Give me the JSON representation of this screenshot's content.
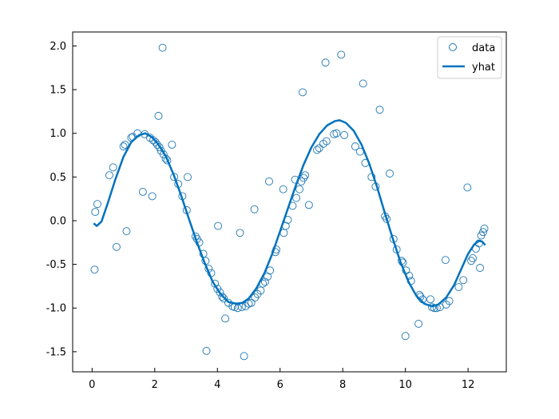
{
  "chart_data": {
    "type": "scatter",
    "xlim": [
      -0.62,
      13.22
    ],
    "ylim": [
      -1.73,
      2.16
    ],
    "x_ticks": [
      0,
      2,
      4,
      6,
      8,
      10,
      12
    ],
    "x_tick_labels": [
      "0",
      "2",
      "4",
      "6",
      "8",
      "10",
      "12"
    ],
    "y_ticks": [
      -1.5,
      -1.0,
      -0.5,
      0.0,
      0.5,
      1.0,
      1.5,
      2.0
    ],
    "y_tick_labels": [
      "-1.5",
      "-1.0",
      "-0.5",
      "0.0",
      "0.5",
      "1.0",
      "1.5",
      "2.0"
    ],
    "tick_direction": "in",
    "grid": false,
    "legend_position": "top-right",
    "colors": {
      "data": "#1f77b4",
      "yhat": "#0072bd"
    },
    "series": [
      {
        "name": "data",
        "kind": "scatter",
        "marker": "hollow-circle",
        "points": [
          [
            0.08,
            -0.56
          ],
          [
            0.1,
            0.1
          ],
          [
            0.17,
            0.19
          ],
          [
            0.55,
            0.52
          ],
          [
            0.67,
            0.61
          ],
          [
            0.78,
            -0.3
          ],
          [
            1.0,
            0.85
          ],
          [
            1.05,
            0.87
          ],
          [
            1.1,
            -0.12
          ],
          [
            1.25,
            0.95
          ],
          [
            1.3,
            0.96
          ],
          [
            1.45,
            1.0
          ],
          [
            1.62,
            0.33
          ],
          [
            1.68,
            0.99
          ],
          [
            1.85,
            0.95
          ],
          [
            1.92,
            0.28
          ],
          [
            1.95,
            0.92
          ],
          [
            2.02,
            0.9
          ],
          [
            2.08,
            0.87
          ],
          [
            2.12,
            1.2
          ],
          [
            2.15,
            0.84
          ],
          [
            2.2,
            0.8
          ],
          [
            2.25,
            1.98
          ],
          [
            2.28,
            0.76
          ],
          [
            2.35,
            0.71
          ],
          [
            2.4,
            0.69
          ],
          [
            2.55,
            0.87
          ],
          [
            2.62,
            0.5
          ],
          [
            2.75,
            0.42
          ],
          [
            2.88,
            0.28
          ],
          [
            3.02,
            0.12
          ],
          [
            3.05,
            0.5
          ],
          [
            3.3,
            -0.18
          ],
          [
            3.35,
            -0.21
          ],
          [
            3.42,
            -0.25
          ],
          [
            3.55,
            -0.38
          ],
          [
            3.62,
            -0.46
          ],
          [
            3.65,
            -1.49
          ],
          [
            3.72,
            -0.55
          ],
          [
            3.8,
            -0.6
          ],
          [
            3.92,
            -0.72
          ],
          [
            4.0,
            -0.78
          ],
          [
            4.02,
            -0.06
          ],
          [
            4.08,
            -0.82
          ],
          [
            4.15,
            -0.87
          ],
          [
            4.2,
            -0.89
          ],
          [
            4.25,
            -1.12
          ],
          [
            4.35,
            -0.94
          ],
          [
            4.48,
            -0.98
          ],
          [
            4.55,
            -0.99
          ],
          [
            4.65,
            -1.0
          ],
          [
            4.72,
            -0.14
          ],
          [
            4.78,
            -0.99
          ],
          [
            4.85,
            -1.55
          ],
          [
            4.9,
            -0.98
          ],
          [
            5.0,
            -0.95
          ],
          [
            5.08,
            -0.94
          ],
          [
            5.18,
            0.13
          ],
          [
            5.2,
            -0.88
          ],
          [
            5.28,
            -0.84
          ],
          [
            5.38,
            -0.8
          ],
          [
            5.45,
            -0.72
          ],
          [
            5.52,
            -0.7
          ],
          [
            5.6,
            -0.64
          ],
          [
            5.65,
            0.45
          ],
          [
            5.68,
            -0.57
          ],
          [
            5.85,
            -0.36
          ],
          [
            5.88,
            -0.33
          ],
          [
            6.1,
            0.36
          ],
          [
            6.12,
            -0.14
          ],
          [
            6.18,
            -0.06
          ],
          [
            6.25,
            0.01
          ],
          [
            6.4,
            0.17
          ],
          [
            6.48,
            0.47
          ],
          [
            6.52,
            0.26
          ],
          [
            6.62,
            0.36
          ],
          [
            6.68,
            0.45
          ],
          [
            6.72,
            1.47
          ],
          [
            6.75,
            0.49
          ],
          [
            6.8,
            0.52
          ],
          [
            6.92,
            0.18
          ],
          [
            7.18,
            0.81
          ],
          [
            7.25,
            0.83
          ],
          [
            7.38,
            0.88
          ],
          [
            7.45,
            1.81
          ],
          [
            7.48,
            0.91
          ],
          [
            7.72,
            0.99
          ],
          [
            7.8,
            1.0
          ],
          [
            7.95,
            1.9
          ],
          [
            8.05,
            0.98
          ],
          [
            8.4,
            0.85
          ],
          [
            8.55,
            0.79
          ],
          [
            8.65,
            1.57
          ],
          [
            8.72,
            0.66
          ],
          [
            8.92,
            0.5
          ],
          [
            9.05,
            0.39
          ],
          [
            9.18,
            1.27
          ],
          [
            9.35,
            0.05
          ],
          [
            9.4,
            0.02
          ],
          [
            9.5,
            0.54
          ],
          [
            9.62,
            -0.21
          ],
          [
            9.72,
            -0.33
          ],
          [
            9.88,
            -0.46
          ],
          [
            9.92,
            -0.48
          ],
          [
            10.0,
            -1.32
          ],
          [
            10.02,
            -0.57
          ],
          [
            10.12,
            -0.63
          ],
          [
            10.18,
            -0.69
          ],
          [
            10.42,
            -1.18
          ],
          [
            10.45,
            -0.85
          ],
          [
            10.48,
            -0.87
          ],
          [
            10.55,
            -0.9
          ],
          [
            10.8,
            -0.9
          ],
          [
            10.85,
            -0.99
          ],
          [
            10.92,
            -1.0
          ],
          [
            11.0,
            -1.0
          ],
          [
            11.1,
            -0.99
          ],
          [
            11.28,
            -0.45
          ],
          [
            11.3,
            -0.96
          ],
          [
            11.4,
            -0.92
          ],
          [
            11.7,
            -0.76
          ],
          [
            11.85,
            -0.68
          ],
          [
            11.98,
            0.38
          ],
          [
            12.1,
            -0.46
          ],
          [
            12.15,
            -0.43
          ],
          [
            12.25,
            -0.32
          ],
          [
            12.35,
            -0.26
          ],
          [
            12.38,
            -0.54
          ],
          [
            12.42,
            -0.17
          ],
          [
            12.48,
            -0.13
          ],
          [
            12.52,
            -0.09
          ]
        ]
      },
      {
        "name": "yhat",
        "kind": "line",
        "points": [
          [
            0.05,
            -0.03
          ],
          [
            0.15,
            -0.06
          ],
          [
            0.3,
            -0.01
          ],
          [
            0.5,
            0.2
          ],
          [
            0.75,
            0.48
          ],
          [
            1.0,
            0.73
          ],
          [
            1.25,
            0.9
          ],
          [
            1.5,
            0.98
          ],
          [
            1.7,
            1.0
          ],
          [
            1.9,
            0.96
          ],
          [
            2.1,
            0.88
          ],
          [
            2.35,
            0.74
          ],
          [
            2.6,
            0.53
          ],
          [
            2.85,
            0.28
          ],
          [
            3.1,
            0.01
          ],
          [
            3.35,
            -0.25
          ],
          [
            3.6,
            -0.49
          ],
          [
            3.85,
            -0.7
          ],
          [
            4.1,
            -0.84
          ],
          [
            4.35,
            -0.93
          ],
          [
            4.6,
            -0.95
          ],
          [
            4.8,
            -0.94
          ],
          [
            5.0,
            -0.89
          ],
          [
            5.25,
            -0.77
          ],
          [
            5.5,
            -0.6
          ],
          [
            5.75,
            -0.38
          ],
          [
            6.0,
            -0.12
          ],
          [
            6.25,
            0.14
          ],
          [
            6.5,
            0.4
          ],
          [
            6.75,
            0.64
          ],
          [
            7.0,
            0.84
          ],
          [
            7.25,
            0.99
          ],
          [
            7.5,
            1.09
          ],
          [
            7.75,
            1.14
          ],
          [
            7.9,
            1.15
          ],
          [
            8.1,
            1.12
          ],
          [
            8.35,
            1.03
          ],
          [
            8.6,
            0.87
          ],
          [
            8.85,
            0.65
          ],
          [
            9.1,
            0.38
          ],
          [
            9.35,
            0.08
          ],
          [
            9.6,
            -0.21
          ],
          [
            9.85,
            -0.48
          ],
          [
            10.1,
            -0.7
          ],
          [
            10.35,
            -0.86
          ],
          [
            10.6,
            -0.95
          ],
          [
            10.85,
            -0.98
          ],
          [
            11.05,
            -0.96
          ],
          [
            11.3,
            -0.88
          ],
          [
            11.55,
            -0.74
          ],
          [
            11.8,
            -0.54
          ],
          [
            12.0,
            -0.38
          ],
          [
            12.2,
            -0.27
          ],
          [
            12.35,
            -0.23
          ],
          [
            12.45,
            -0.24
          ],
          [
            12.55,
            -0.28
          ]
        ]
      }
    ]
  }
}
